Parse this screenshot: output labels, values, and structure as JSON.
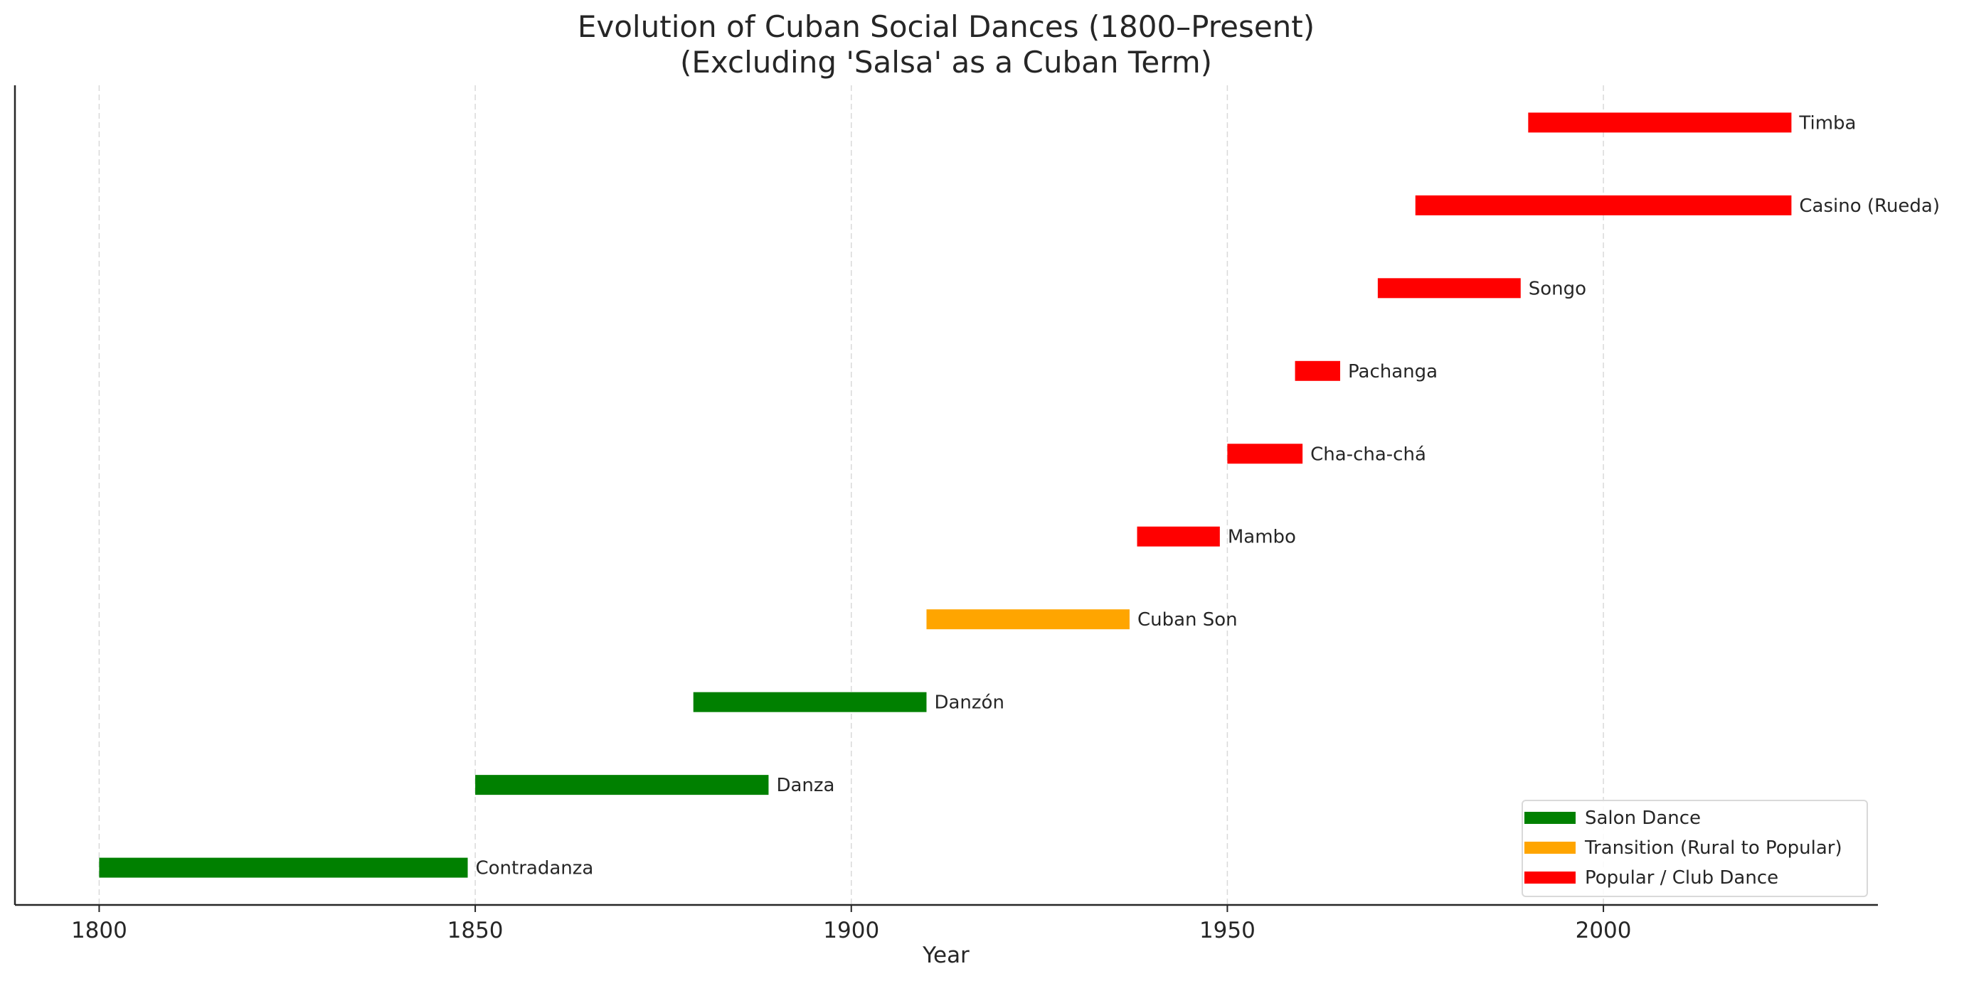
{
  "chart_data": {
    "type": "bar",
    "orientation": "horizontal-timeline",
    "title": "Evolution of Cuban Social Dances (1800–Present)\n(Excluding 'Salsa' as a Cuban Term)",
    "title_lines": [
      "Evolution of Cuban Social Dances (1800–Present)",
      "(Excluding 'Salsa' as a Cuban Term)"
    ],
    "xlabel": "Year",
    "ylabel": "",
    "xlim": [
      1788.8,
      2036.5
    ],
    "xticks": [
      1800,
      1850,
      1900,
      1950,
      2000
    ],
    "grid": "x dashed",
    "legend_placement": "lower-right",
    "legend": [
      {
        "name": "Salon Dance",
        "color": "#008000"
      },
      {
        "name": "Transition (Rural to Popular)",
        "color": "#FFA500"
      },
      {
        "name": "Popular / Club Dance",
        "color": "#FF0000"
      }
    ],
    "dances": [
      {
        "name": "Contradanza",
        "start": 1800,
        "end": 1849,
        "category": 0
      },
      {
        "name": "Danza",
        "start": 1850,
        "end": 1889,
        "category": 0
      },
      {
        "name": "Danzón",
        "start": 1879,
        "end": 1910,
        "category": 0
      },
      {
        "name": "Cuban Son",
        "start": 1910,
        "end": 1937,
        "category": 1
      },
      {
        "name": "Mambo",
        "start": 1938,
        "end": 1949,
        "category": 2
      },
      {
        "name": "Cha-cha-chá",
        "start": 1950,
        "end": 1960,
        "category": 2
      },
      {
        "name": "Pachanga",
        "start": 1959,
        "end": 1965,
        "category": 2
      },
      {
        "name": "Songo",
        "start": 1970,
        "end": 1989,
        "category": 2
      },
      {
        "name": "Casino (Rueda)",
        "start": 1975,
        "end": 2025,
        "category": 2
      },
      {
        "name": "Timba",
        "start": 1990,
        "end": 2025,
        "category": 2
      }
    ]
  }
}
